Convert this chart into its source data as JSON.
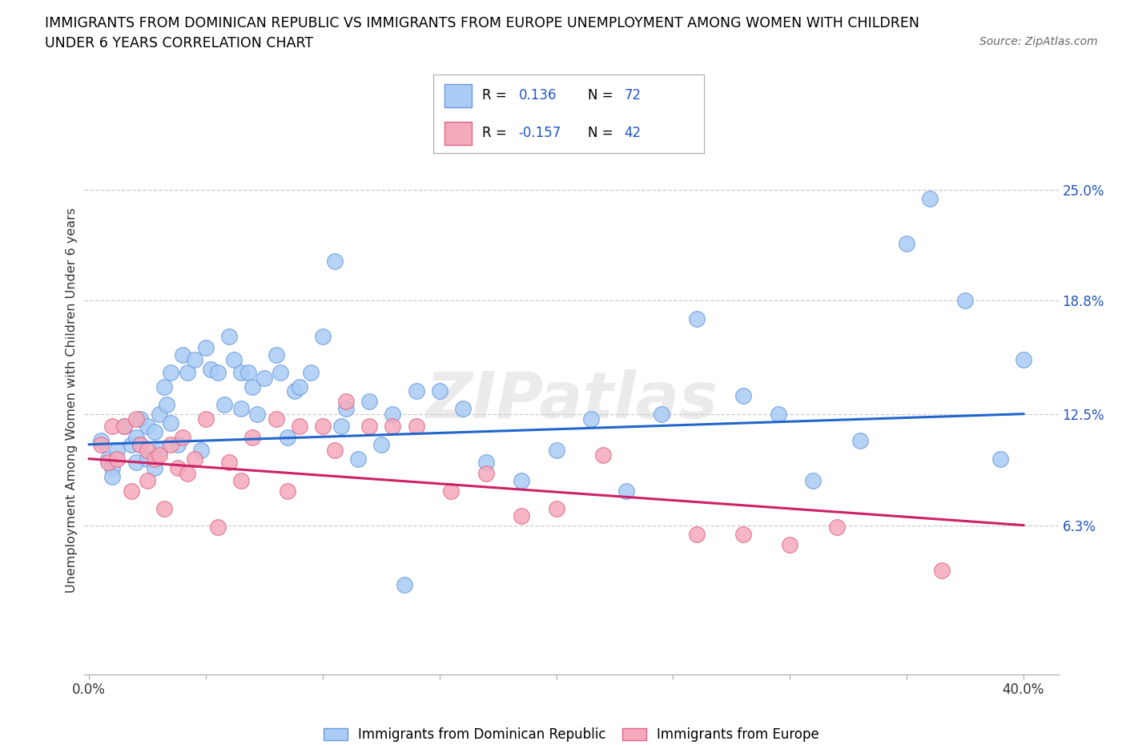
{
  "title_line1": "IMMIGRANTS FROM DOMINICAN REPUBLIC VS IMMIGRANTS FROM EUROPE UNEMPLOYMENT AMONG WOMEN WITH CHILDREN",
  "title_line2": "UNDER 6 YEARS CORRELATION CHART",
  "source": "Source: ZipAtlas.com",
  "ylabel": "Unemployment Among Women with Children Under 6 years",
  "xlim": [
    -0.002,
    0.415
  ],
  "ylim": [
    -0.02,
    0.285
  ],
  "ytick_vals": [
    0.063,
    0.125,
    0.188,
    0.25
  ],
  "ytick_labels": [
    "6.3%",
    "12.5%",
    "18.8%",
    "25.0%"
  ],
  "xtick_positions": [
    0.0,
    0.05,
    0.1,
    0.15,
    0.2,
    0.25,
    0.3,
    0.35,
    0.4
  ],
  "xtick_labels": [
    "0.0%",
    "",
    "",
    "",
    "",
    "",
    "",
    "",
    "40.0%"
  ],
  "R_blue": "0.136",
  "N_blue": "72",
  "R_pink": "-0.157",
  "N_pink": "42",
  "color_blue": "#aaccf5",
  "color_pink": "#f5aabb",
  "edge_blue": "#6699dd",
  "edge_pink": "#dd6688",
  "line_blue": "#2266cc",
  "line_pink": "#cc2266",
  "legend_label_blue": "Immigrants from Dominican Republic",
  "legend_label_pink": "Immigrants from Europe",
  "blue_x": [
    0.005,
    0.008,
    0.01,
    0.01,
    0.012,
    0.015,
    0.018,
    0.02,
    0.02,
    0.022,
    0.022,
    0.025,
    0.025,
    0.028,
    0.028,
    0.03,
    0.03,
    0.032,
    0.033,
    0.035,
    0.035,
    0.038,
    0.04,
    0.042,
    0.045,
    0.048,
    0.05,
    0.052,
    0.055,
    0.058,
    0.06,
    0.062,
    0.065,
    0.065,
    0.068,
    0.07,
    0.072,
    0.075,
    0.08,
    0.082,
    0.085,
    0.088,
    0.09,
    0.095,
    0.1,
    0.105,
    0.108,
    0.11,
    0.115,
    0.12,
    0.125,
    0.13,
    0.135,
    0.14,
    0.15,
    0.16,
    0.17,
    0.185,
    0.2,
    0.215,
    0.23,
    0.245,
    0.26,
    0.28,
    0.295,
    0.31,
    0.33,
    0.35,
    0.36,
    0.375,
    0.39,
    0.4
  ],
  "blue_y": [
    0.11,
    0.1,
    0.095,
    0.09,
    0.105,
    0.118,
    0.108,
    0.112,
    0.098,
    0.122,
    0.108,
    0.118,
    0.1,
    0.115,
    0.095,
    0.125,
    0.105,
    0.14,
    0.13,
    0.148,
    0.12,
    0.108,
    0.158,
    0.148,
    0.155,
    0.105,
    0.162,
    0.15,
    0.148,
    0.13,
    0.168,
    0.155,
    0.148,
    0.128,
    0.148,
    0.14,
    0.125,
    0.145,
    0.158,
    0.148,
    0.112,
    0.138,
    0.14,
    0.148,
    0.168,
    0.21,
    0.118,
    0.128,
    0.1,
    0.132,
    0.108,
    0.125,
    0.03,
    0.138,
    0.138,
    0.128,
    0.098,
    0.088,
    0.105,
    0.122,
    0.082,
    0.125,
    0.178,
    0.135,
    0.125,
    0.088,
    0.11,
    0.22,
    0.245,
    0.188,
    0.1,
    0.155
  ],
  "pink_x": [
    0.005,
    0.008,
    0.01,
    0.012,
    0.015,
    0.018,
    0.02,
    0.022,
    0.025,
    0.025,
    0.028,
    0.03,
    0.032,
    0.035,
    0.038,
    0.04,
    0.042,
    0.045,
    0.05,
    0.055,
    0.06,
    0.065,
    0.07,
    0.08,
    0.085,
    0.09,
    0.1,
    0.105,
    0.11,
    0.12,
    0.13,
    0.14,
    0.155,
    0.17,
    0.185,
    0.2,
    0.22,
    0.26,
    0.28,
    0.3,
    0.32,
    0.365
  ],
  "pink_y": [
    0.108,
    0.098,
    0.118,
    0.1,
    0.118,
    0.082,
    0.122,
    0.108,
    0.105,
    0.088,
    0.1,
    0.102,
    0.072,
    0.108,
    0.095,
    0.112,
    0.092,
    0.1,
    0.122,
    0.062,
    0.098,
    0.088,
    0.112,
    0.122,
    0.082,
    0.118,
    0.118,
    0.105,
    0.132,
    0.118,
    0.118,
    0.118,
    0.082,
    0.092,
    0.068,
    0.072,
    0.102,
    0.058,
    0.058,
    0.052,
    0.062,
    0.038
  ],
  "blue_trend_x": [
    0.0,
    0.4
  ],
  "blue_trend_y": [
    0.108,
    0.125
  ],
  "pink_trend_x": [
    0.0,
    0.4
  ],
  "pink_trend_y": [
    0.1,
    0.063
  ]
}
